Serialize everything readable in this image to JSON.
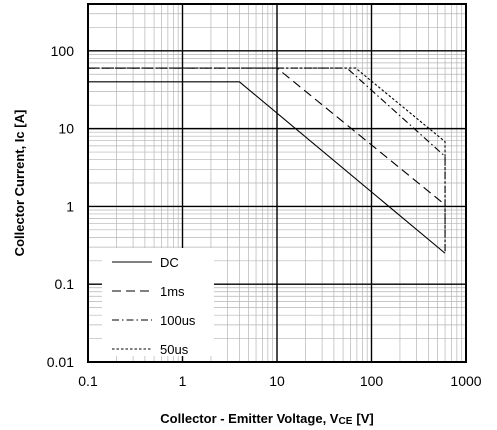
{
  "chart_data": {
    "type": "line",
    "x_scale": "log",
    "y_scale": "log",
    "xlim": [
      0.1,
      1000
    ],
    "ylim": [
      0.01,
      400
    ],
    "x_ticks": [
      {
        "value": 0.1,
        "label": "0.1"
      },
      {
        "value": 1,
        "label": "1"
      },
      {
        "value": 10,
        "label": "10"
      },
      {
        "value": 100,
        "label": "100"
      },
      {
        "value": 1000,
        "label": "1000"
      }
    ],
    "y_ticks": [
      {
        "value": 0.01,
        "label": "0.01"
      },
      {
        "value": 0.1,
        "label": "0.1"
      },
      {
        "value": 1,
        "label": "1"
      },
      {
        "value": 10,
        "label": "10"
      },
      {
        "value": 100,
        "label": "100"
      }
    ],
    "xlabel": "Collector - Emitter Voltage, V",
    "xlabel_sub": "CE",
    "xlabel_unit": "[V]",
    "ylabel": "Collector Current, Ic [A]",
    "grid": true,
    "legend_position": "bottom-left",
    "series": [
      {
        "name": "DC",
        "dash": "solid",
        "points": [
          [
            0.1,
            40
          ],
          [
            4,
            40
          ],
          [
            600,
            0.25
          ]
        ]
      },
      {
        "name": "1ms",
        "dash": "dashed",
        "points": [
          [
            0.1,
            60
          ],
          [
            10,
            60
          ],
          [
            600,
            1.05
          ]
        ]
      },
      {
        "name": "100us",
        "dash": "dashdot",
        "points": [
          [
            0.1,
            60
          ],
          [
            55,
            60
          ],
          [
            600,
            4.4
          ],
          [
            600,
            0.25
          ]
        ]
      },
      {
        "name": "50us",
        "dash": "dotted",
        "points": [
          [
            0.1,
            60
          ],
          [
            68,
            60
          ],
          [
            600,
            6.8
          ],
          [
            600,
            0.25
          ]
        ]
      }
    ]
  }
}
